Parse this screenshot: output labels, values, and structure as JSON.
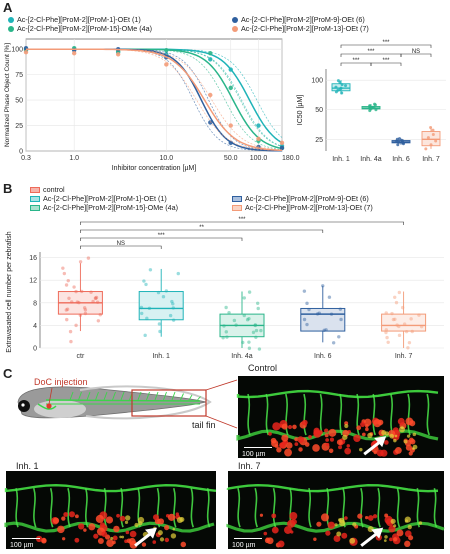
{
  "panels": {
    "a": "A",
    "b": "B",
    "c": "C"
  },
  "colors": {
    "inh1": "#1fb3b8",
    "inh4a": "#2ab58a",
    "inh6": "#2f5f9e",
    "inh7": "#f39b78",
    "control": "#ee6b5a"
  },
  "panelA": {
    "legend": [
      {
        "label": "Ac-[2-Cl-Phe][ProM-2][ProM-1]-OEt (1)",
        "color": "#1fb3b8"
      },
      {
        "label": "Ac-[2-Cl-Phe][ProM-2][ProM-9]-OEt (6)",
        "color": "#2f5f9e"
      },
      {
        "label": "Ac-[2-Cl-Phe][ProM-2][ProM-15]-OMe (4a)",
        "color": "#2ab58a"
      },
      {
        "label": "Ac-[2-Cl-Phe][ProM-2][ProM-13]-OEt (7)",
        "color": "#f39b78"
      }
    ],
    "curve_chart": {
      "type": "line",
      "xlabel": "Inhibitor concentration [µM]",
      "ylabel": "Normalized Phase Object Count [%]",
      "x_scale": "log",
      "xlim": [
        0.3,
        180
      ],
      "ylim": [
        0,
        110
      ],
      "x_ticks": [
        0.3,
        1.0,
        10.0,
        50.0,
        100.0,
        180.0
      ],
      "x_tick_labels": [
        "0.3",
        "1.0",
        "10.0",
        "50.0",
        "100.0",
        "180.0"
      ],
      "y_ticks": [
        0,
        25,
        50,
        75,
        100
      ],
      "y_tick_labels": [
        "0",
        "25",
        "50",
        "75",
        "100"
      ],
      "series": [
        {
          "key": "inh1",
          "color": "#1fb3b8",
          "ic50": 80,
          "hill": 3.0,
          "points": [
            [
              0.3,
              99
            ],
            [
              1,
              100
            ],
            [
              3,
              97
            ],
            [
              10,
              95
            ],
            [
              30,
              90
            ],
            [
              50,
              80
            ],
            [
              100,
              25
            ],
            [
              180,
              5
            ]
          ]
        },
        {
          "key": "inh4a",
          "color": "#2ab58a",
          "ic50": 53,
          "hill": 3.0,
          "points": [
            [
              0.3,
              100
            ],
            [
              1,
              101
            ],
            [
              3,
              98
            ],
            [
              10,
              99
            ],
            [
              30,
              96
            ],
            [
              50,
              62
            ],
            [
              100,
              10
            ],
            [
              180,
              3
            ]
          ]
        },
        {
          "key": "inh6",
          "color": "#2f5f9e",
          "ic50": 24,
          "hill": 3.2,
          "points": [
            [
              0.3,
              101
            ],
            [
              1,
              99
            ],
            [
              3,
              100
            ],
            [
              10,
              92
            ],
            [
              30,
              28
            ],
            [
              50,
              8
            ],
            [
              100,
              4
            ],
            [
              180,
              3
            ]
          ]
        },
        {
          "key": "inh7",
          "color": "#f39b78",
          "ic50": 26,
          "hill": 2.6,
          "points": [
            [
              0.3,
              97
            ],
            [
              1,
              96
            ],
            [
              3,
              95
            ],
            [
              10,
              85
            ],
            [
              30,
              55
            ],
            [
              50,
              25
            ],
            [
              100,
              12
            ],
            [
              180,
              8
            ]
          ]
        }
      ]
    },
    "ic50_chart": {
      "type": "box",
      "ylabel": "IC50 [µM]",
      "y_scale": "log",
      "ylim": [
        19,
        130
      ],
      "y_ticks": [
        25,
        50,
        100
      ],
      "y_tick_labels": [
        "25",
        "50",
        "100"
      ],
      "categories": [
        "Inh. 1",
        "Inh. 4a",
        "Inh. 6",
        "Inh. 7"
      ],
      "colors": [
        "#1fb3b8",
        "#2ab58a",
        "#2f5f9e",
        "#f39b78"
      ],
      "boxes": [
        {
          "min": 72,
          "q1": 78,
          "median": 83,
          "q3": 92,
          "max": 100,
          "points": [
            74,
            76,
            79,
            81,
            83,
            85,
            88,
            90,
            95,
            99
          ]
        },
        {
          "min": 49,
          "q1": 51,
          "median": 52,
          "q3": 54,
          "max": 57,
          "points": [
            49,
            50,
            51,
            52,
            52,
            53,
            53,
            54,
            55,
            56,
            57
          ]
        },
        {
          "min": 22,
          "q1": 23,
          "median": 23.5,
          "q3": 24.3,
          "max": 25.5,
          "points": [
            22,
            22.5,
            23,
            23.3,
            23.6,
            24,
            24.4,
            25,
            25.4
          ]
        },
        {
          "min": 20,
          "q1": 21.5,
          "median": 25,
          "q3": 30,
          "max": 33,
          "points": [
            20,
            22,
            24,
            26,
            28,
            31,
            33
          ]
        }
      ],
      "significance": [
        {
          "from": 0,
          "to": 1,
          "label": "***",
          "level": 0
        },
        {
          "from": 1,
          "to": 2,
          "label": "***",
          "level": 0
        },
        {
          "from": 0,
          "to": 2,
          "label": "***",
          "level": 1
        },
        {
          "from": 2,
          "to": 3,
          "label": "NS",
          "level": 1
        },
        {
          "from": 0,
          "to": 3,
          "label": "***",
          "level": 2
        }
      ]
    }
  },
  "panelB": {
    "legend": [
      {
        "label": "control",
        "color": "#ee6b5a"
      },
      {
        "label": "Ac-[2-Cl-Phe][ProM-2][ProM-9]-OEt (6)",
        "color": "#2f5f9e"
      },
      {
        "label": "Ac-[2-Cl-Phe][ProM-2][ProM-1]-OEt (1)",
        "color": "#1fb3b8"
      },
      {
        "label": "Ac-[2-Cl-Phe][ProM-2][ProM-13]-OEt (7)",
        "color": "#f39b78"
      },
      {
        "label": "Ac-[2-Cl-Phe][ProM-2][ProM-15]-OMe (4a)",
        "color": "#2ab58a"
      }
    ],
    "chart": {
      "type": "box",
      "ylabel": "Extravasated cell number per zebrafish",
      "ylim": [
        0,
        17
      ],
      "y_ticks": [
        0,
        4,
        8,
        12,
        16
      ],
      "y_tick_labels": [
        "0",
        "4",
        "8",
        "12",
        "16"
      ],
      "categories": [
        "ctr",
        "Inh. 1",
        "Inh. 4a",
        "Inh. 6",
        "Inh. 7"
      ],
      "colors": [
        "#ee6b5a",
        "#1fb3b8",
        "#2ab58a",
        "#2f5f9e",
        "#f39b78"
      ],
      "boxes": [
        {
          "min": 3,
          "q1": 6,
          "median": 8,
          "q3": 10,
          "max": 15,
          "points": [
            1,
            3,
            4,
            5,
            5,
            6,
            6,
            6,
            7,
            7,
            7,
            7,
            8,
            8,
            8,
            8,
            8,
            9,
            9,
            9,
            9,
            10,
            10,
            10,
            11,
            11,
            12,
            13,
            14,
            15,
            16
          ]
        },
        {
          "min": 2,
          "q1": 5,
          "median": 7,
          "q3": 10,
          "max": 14,
          "points": [
            2,
            3,
            4,
            5,
            5,
            6,
            6,
            7,
            7,
            7,
            8,
            8,
            9,
            10,
            10,
            11,
            12,
            13,
            14
          ]
        },
        {
          "min": 0,
          "q1": 2,
          "median": 4,
          "q3": 6,
          "max": 10,
          "points": [
            0,
            0,
            1,
            1,
            2,
            2,
            2,
            3,
            3,
            3,
            3,
            4,
            4,
            4,
            4,
            5,
            5,
            5,
            6,
            6,
            7,
            7,
            8,
            9,
            10
          ]
        },
        {
          "min": 1,
          "q1": 3,
          "median": 6,
          "q3": 7,
          "max": 11,
          "points": [
            1,
            2,
            3,
            3,
            4,
            5,
            5,
            6,
            6,
            6,
            7,
            7,
            8,
            9,
            10,
            11
          ]
        },
        {
          "min": 0,
          "q1": 3,
          "median": 4,
          "q3": 6,
          "max": 10,
          "points": [
            0,
            1,
            1,
            2,
            2,
            3,
            3,
            3,
            3,
            4,
            4,
            4,
            4,
            5,
            5,
            5,
            6,
            6,
            6,
            7,
            8,
            9,
            10
          ]
        }
      ],
      "significance": [
        {
          "from": 0,
          "to": 1,
          "label": "NS",
          "level": 0
        },
        {
          "from": 0,
          "to": 2,
          "label": "***",
          "level": 1
        },
        {
          "from": 0,
          "to": 3,
          "label": "**",
          "level": 2
        },
        {
          "from": 0,
          "to": 4,
          "label": "***",
          "level": 3
        }
      ]
    }
  },
  "panelC": {
    "doc_injection": "DoC injection",
    "tail_fin": "tail fin",
    "images": [
      {
        "title": "Control",
        "scale": "100 µm"
      },
      {
        "title": "Inh. 1",
        "scale": "100 µm"
      },
      {
        "title": "Inh. 7",
        "scale": "100 µm"
      }
    ]
  }
}
